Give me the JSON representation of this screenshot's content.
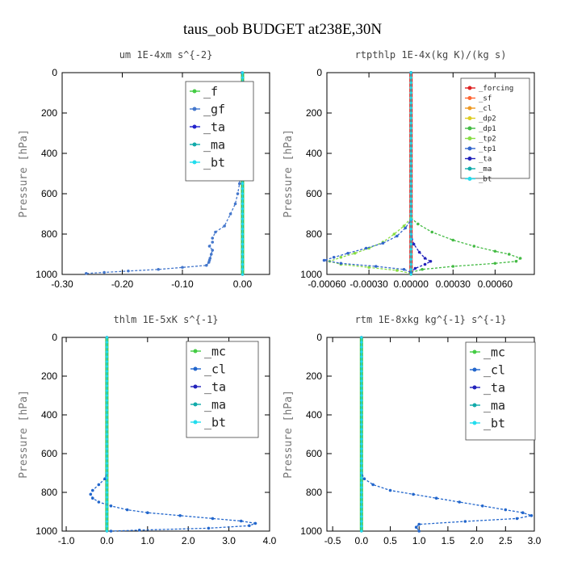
{
  "title": "taus_oob  BUDGET at238E,30N",
  "ylabel": "Pressure [hPa]",
  "chart_data": [
    {
      "type": "line",
      "title": "um   1E-4xm s^{-2}",
      "ylabel": "Pressure [hPa]",
      "xlim": [
        -0.3,
        0.045
      ],
      "ylim": [
        1000,
        0
      ],
      "xticks": [
        -0.3,
        -0.2,
        -0.1,
        0.0
      ],
      "xtick_labels": [
        "-0.30",
        "-0.20",
        "-0.10",
        "0.00"
      ],
      "yticks": [
        0,
        200,
        400,
        600,
        800,
        1000
      ],
      "ytick_labels": [
        "0",
        "200",
        "400",
        "600",
        "800",
        "1000"
      ],
      "legend_position": "top-right",
      "series": [
        {
          "name": "_f",
          "color": "#44cc44",
          "x": [
            0.0,
            0.0
          ],
          "y": [
            0,
            1000
          ]
        },
        {
          "name": "_gf",
          "color": "#4477cc",
          "x": [
            -0.001,
            0.002,
            0.006,
            0.002,
            0.0,
            -0.002,
            -0.003,
            -0.004,
            -0.005,
            -0.008,
            -0.012,
            -0.02,
            -0.03,
            -0.045,
            -0.05,
            -0.05,
            -0.055,
            -0.05,
            -0.052,
            -0.054,
            -0.055,
            -0.056,
            -0.06,
            -0.1,
            -0.14,
            -0.19,
            -0.23,
            -0.26
          ],
          "y": [
            0,
            60,
            130,
            200,
            300,
            400,
            450,
            500,
            550,
            600,
            650,
            700,
            760,
            790,
            820,
            840,
            860,
            880,
            900,
            920,
            930,
            940,
            955,
            965,
            975,
            983,
            990,
            995
          ]
        },
        {
          "name": "_ta",
          "color": "#2222cc",
          "x": [
            0.0,
            0.0
          ],
          "y": [
            0,
            1000
          ]
        },
        {
          "name": "_ma",
          "color": "#11aaaa",
          "x": [
            0.0,
            0.0
          ],
          "y": [
            0,
            1000
          ]
        },
        {
          "name": "_bt",
          "color": "#22ddee",
          "x": [
            0.0,
            0.0
          ],
          "y": [
            0,
            1000
          ]
        }
      ]
    },
    {
      "type": "line",
      "title": "rtpthlp   1E-4x(kg K)/(kg s)",
      "ylabel": "Pressure [hPa]",
      "xlim": [
        -0.0006,
        0.00088
      ],
      "ylim": [
        1000,
        0
      ],
      "xticks": [
        -0.0006,
        -0.0003,
        0.0,
        0.0003,
        0.0006
      ],
      "xtick_labels": [
        "-0.00060",
        "-0.00030",
        "0.00000",
        "0.00030",
        "0.00060"
      ],
      "yticks": [
        0,
        200,
        400,
        600,
        800,
        1000
      ],
      "ytick_labels": [
        "0",
        "200",
        "400",
        "600",
        "800",
        "1000"
      ],
      "legend_position": "top-right",
      "series": [
        {
          "name": "_forcing",
          "color": "#dd2222",
          "x": [
            0.0,
            0.0
          ],
          "y": [
            0,
            1000
          ]
        },
        {
          "name": "_sf",
          "color": "#ff6633",
          "x": [
            0.0,
            0.0
          ],
          "y": [
            0,
            1000
          ]
        },
        {
          "name": "_cl",
          "color": "#ee9922",
          "x": [
            0.0,
            0.0
          ],
          "y": [
            0,
            1000
          ]
        },
        {
          "name": "_dp2",
          "color": "#ddcc22",
          "x": [
            0.0,
            0.0
          ],
          "y": [
            0,
            1000
          ]
        },
        {
          "name": "_dp1",
          "color": "#44bb44",
          "x": [
            0.0,
            0.0,
            5e-05,
            0.00015,
            0.0003,
            0.00045,
            0.0006,
            0.0007,
            0.00078,
            0.00075,
            0.0006,
            0.0003,
            8e-05,
            0.0
          ],
          "y": [
            0,
            720,
            750,
            790,
            830,
            860,
            885,
            900,
            920,
            935,
            945,
            960,
            975,
            990
          ]
        },
        {
          "name": "_tp2",
          "color": "#88dd44",
          "x": [
            0.0,
            0.0,
            -5e-05,
            -0.00012,
            -0.0002,
            -0.0003,
            -0.0004,
            -0.0005,
            -0.00058,
            -0.0005,
            -0.0003,
            -0.0001,
            0.0
          ],
          "y": [
            0,
            720,
            760,
            800,
            840,
            870,
            895,
            915,
            935,
            950,
            965,
            980,
            995
          ]
        },
        {
          "name": "_tp1",
          "color": "#3366cc",
          "x": [
            0.0,
            0.0,
            -4e-05,
            -0.0001,
            -0.0002,
            -0.00032,
            -0.00045,
            -0.00055,
            -0.00062,
            -0.0005,
            -0.00025,
            -5e-05,
            0.0
          ],
          "y": [
            0,
            730,
            770,
            810,
            845,
            870,
            895,
            915,
            930,
            945,
            960,
            975,
            990
          ]
        },
        {
          "name": "_ta",
          "color": "#2222bb",
          "x": [
            0.0,
            0.0,
            2e-05,
            6e-05,
            0.0001,
            0.00014,
            0.0001,
            3e-05,
            0.0
          ],
          "y": [
            0,
            800,
            850,
            890,
            920,
            935,
            950,
            970,
            990
          ]
        },
        {
          "name": "_ma",
          "color": "#11aaaa",
          "x": [
            0.0,
            0.0
          ],
          "y": [
            0,
            1000
          ]
        },
        {
          "name": "_bt",
          "color": "#22ddee",
          "x": [
            0.0,
            0.0
          ],
          "y": [
            0,
            1000
          ]
        }
      ]
    },
    {
      "type": "line",
      "title": "thlm   1E-5xK s^{-1}",
      "ylabel": "Pressure [hPa]",
      "xlim": [
        -1.1,
        4.0
      ],
      "ylim": [
        1000,
        0
      ],
      "xticks": [
        -1.0,
        0.0,
        1.0,
        2.0,
        3.0,
        4.0
      ],
      "xtick_labels": [
        "-1.0",
        "0.0",
        "1.0",
        "2.0",
        "3.0",
        "4.0"
      ],
      "yticks": [
        0,
        200,
        400,
        600,
        800,
        1000
      ],
      "ytick_labels": [
        "0",
        "200",
        "400",
        "600",
        "800",
        "1000"
      ],
      "legend_position": "top-right",
      "series": [
        {
          "name": "_mc",
          "color": "#44cc44",
          "x": [
            0.0,
            0.0
          ],
          "y": [
            0,
            1000
          ]
        },
        {
          "name": "_cl",
          "color": "#2266cc",
          "x": [
            0.0,
            0.0,
            -0.05,
            -0.2,
            -0.35,
            -0.4,
            -0.35,
            -0.2,
            0.1,
            0.5,
            1.0,
            1.8,
            2.6,
            3.3,
            3.65,
            3.5,
            2.5,
            0.8,
            0.1
          ],
          "y": [
            0,
            700,
            730,
            760,
            790,
            810,
            830,
            850,
            870,
            890,
            905,
            920,
            935,
            948,
            960,
            972,
            985,
            995,
            1000
          ]
        },
        {
          "name": "_ta",
          "color": "#2222bb",
          "x": [
            0.0,
            0.0
          ],
          "y": [
            0,
            1000
          ]
        },
        {
          "name": "_ma",
          "color": "#11aaaa",
          "x": [
            0.0,
            0.0
          ],
          "y": [
            0,
            1000
          ]
        },
        {
          "name": "_bt",
          "color": "#22ddee",
          "x": [
            0.0,
            0.0
          ],
          "y": [
            0,
            1000
          ]
        }
      ]
    },
    {
      "type": "line",
      "title": "rtm   1E-8xkg kg^{-1} s^{-1}",
      "ylabel": "Pressure [hPa]",
      "xlim": [
        -0.6,
        3.0
      ],
      "ylim": [
        1000,
        0
      ],
      "xticks": [
        -0.5,
        0.0,
        0.5,
        1.0,
        1.5,
        2.0,
        2.5,
        3.0
      ],
      "xtick_labels": [
        "-0.5",
        "0.0",
        "0.5",
        "1.0",
        "1.5",
        "2.0",
        "2.5",
        "3.0"
      ],
      "yticks": [
        0,
        200,
        400,
        600,
        800,
        1000
      ],
      "ytick_labels": [
        "0",
        "200",
        "400",
        "600",
        "800",
        "1000"
      ],
      "legend_position": "top-right",
      "series": [
        {
          "name": "_mc",
          "color": "#44cc44",
          "x": [
            0.0,
            0.0
          ],
          "y": [
            0,
            1000
          ]
        },
        {
          "name": "_cl",
          "color": "#2266cc",
          "x": [
            0.0,
            0.0,
            0.05,
            0.2,
            0.5,
            0.9,
            1.3,
            1.7,
            2.1,
            2.5,
            2.8,
            2.95,
            2.7,
            1.8,
            1.0,
            0.95,
            1.0
          ],
          "y": [
            0,
            700,
            730,
            760,
            790,
            810,
            830,
            850,
            870,
            890,
            905,
            920,
            935,
            950,
            965,
            980,
            1000
          ]
        },
        {
          "name": "_ta",
          "color": "#2222bb",
          "x": [
            0.0,
            0.0
          ],
          "y": [
            0,
            1000
          ]
        },
        {
          "name": "_ma",
          "color": "#11aaaa",
          "x": [
            0.0,
            0.0
          ],
          "y": [
            0,
            1000
          ]
        },
        {
          "name": "_bt",
          "color": "#22ddee",
          "x": [
            0.0,
            0.0
          ],
          "y": [
            0,
            1000
          ]
        }
      ]
    }
  ]
}
